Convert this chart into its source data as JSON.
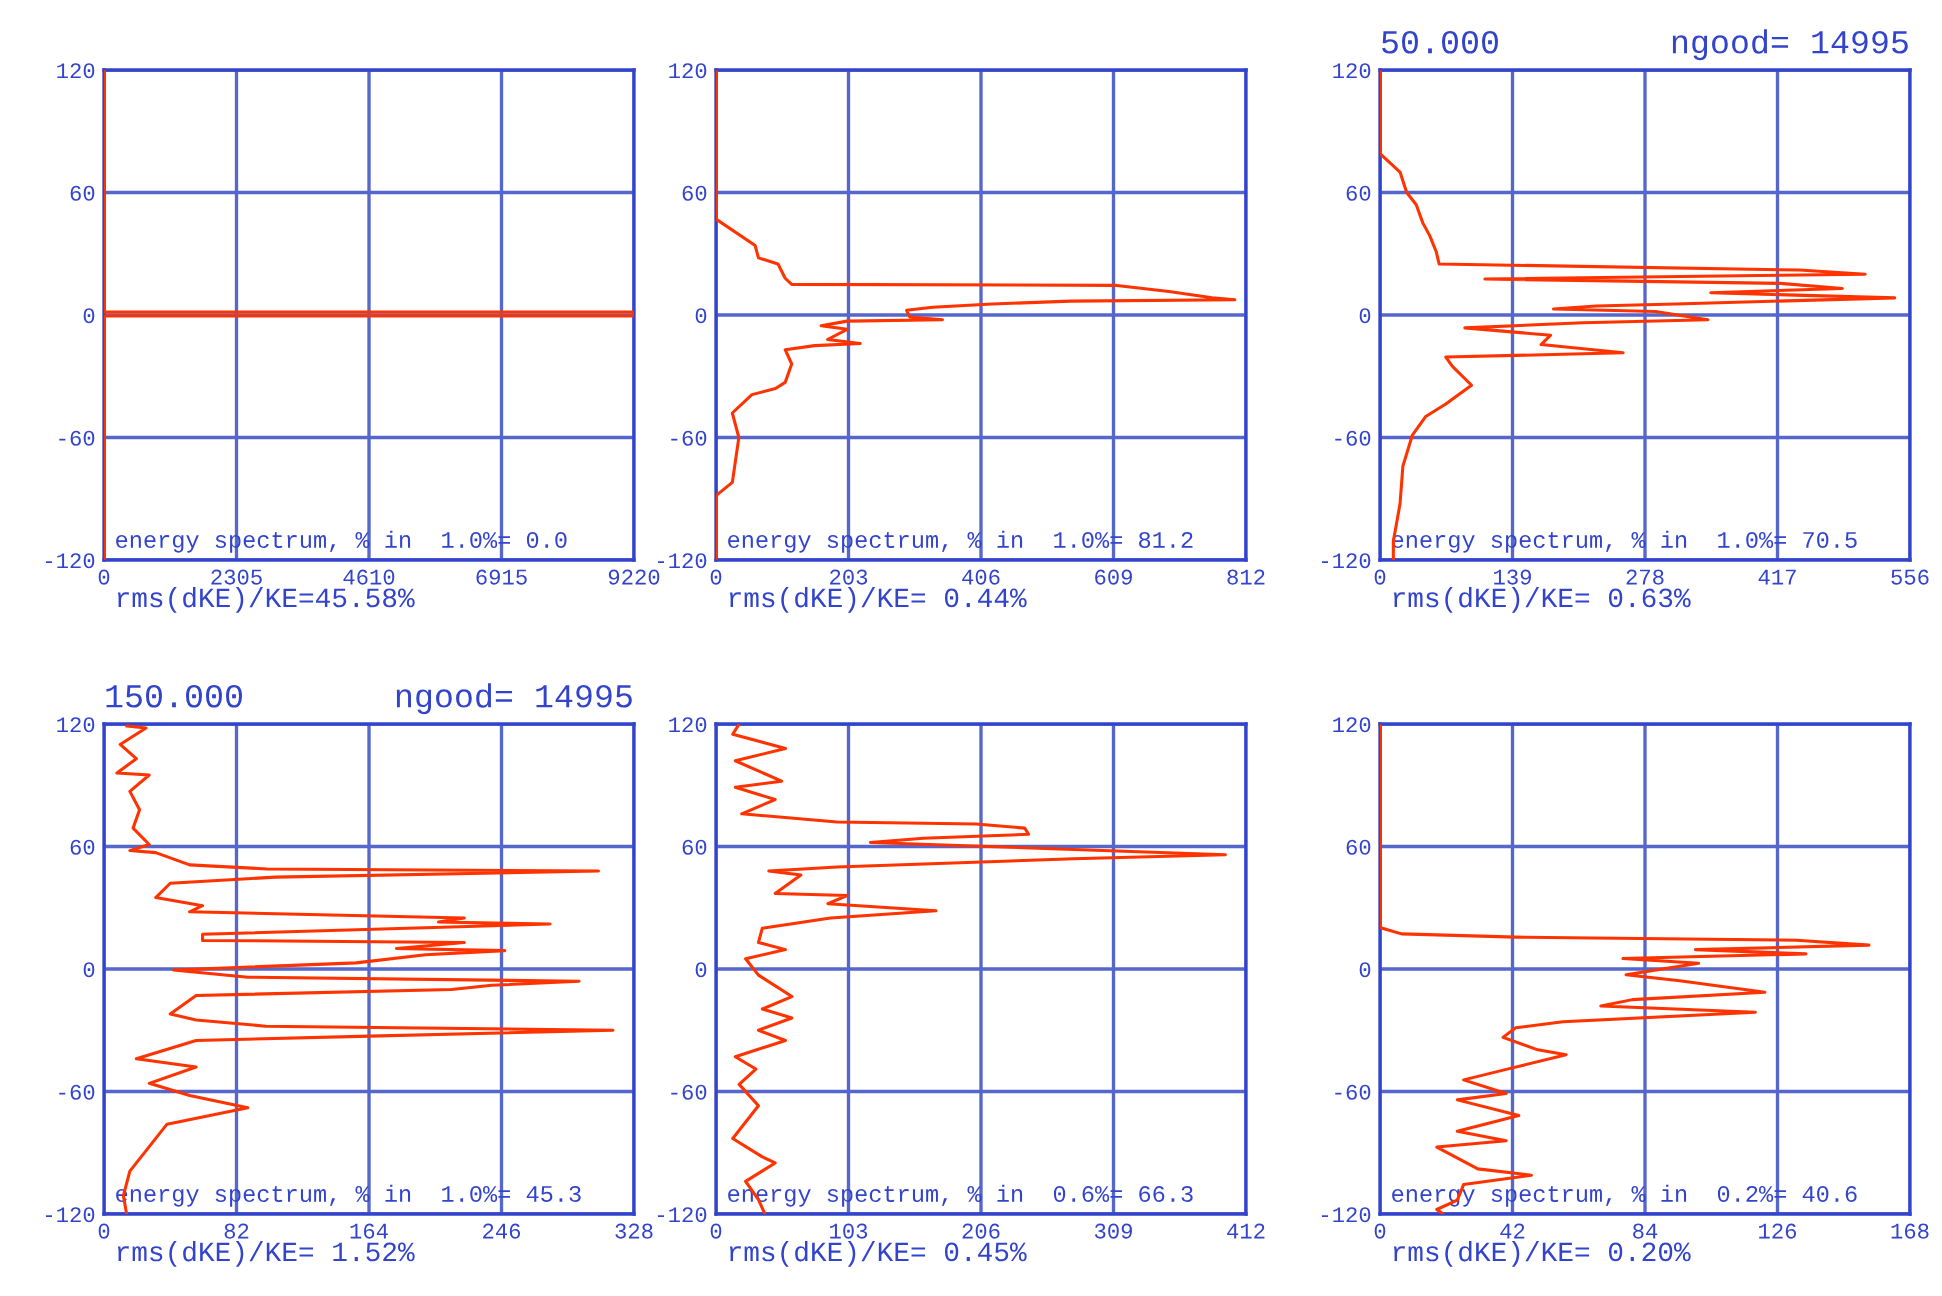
{
  "chart_data": [
    {
      "type": "line",
      "xlim": [
        0,
        9220
      ],
      "xticks": [
        0,
        2305,
        4610,
        6915,
        9220
      ],
      "ylim": [
        -120,
        120
      ],
      "yticks": [
        -120,
        -60,
        0,
        60,
        120
      ],
      "grid": true,
      "series": [
        {
          "color": "#ff3300",
          "x": [
            0,
            0,
            9220,
            9220,
            0,
            0
          ],
          "values": [
            120,
            1.5,
            1.5,
            -0.5,
            -0.5,
            -120
          ]
        }
      ],
      "annotations": [
        "energy spectrum, % in  1.0%= 0.0",
        "rms(dKE)/KE=45.58%"
      ]
    },
    {
      "type": "line",
      "xlim": [
        0,
        812
      ],
      "xticks": [
        0,
        203,
        406,
        609,
        812
      ],
      "ylim": [
        -120,
        120
      ],
      "yticks": [
        -120,
        -60,
        0,
        60,
        120
      ],
      "grid": true,
      "series": [
        {
          "color": "#ff3300",
          "x": [
            0,
            0,
            60,
            65,
            95,
            106,
            116,
            614,
            694,
            760,
            795,
            543,
            423,
            332,
            292,
            297,
            347,
            201,
            161,
            201,
            171,
            221,
            151,
            106,
            116,
            106,
            91,
            55,
            25,
            35,
            25,
            0,
            0
          ],
          "values": [
            120,
            47,
            34,
            28,
            25,
            18,
            15,
            14.5,
            11.5,
            8.4,
            7.5,
            6.8,
            5.4,
            3.8,
            2.3,
            -1,
            -2.3,
            -3,
            -5.3,
            -7,
            -12,
            -14,
            -15,
            -17,
            -24,
            -33,
            -36,
            -39,
            -48,
            -60,
            -82,
            -88.5,
            -120
          ]
        }
      ],
      "annotations": [
        "energy spectrum, % in  1.0%= 81.2",
        "rms(dKE)/KE= 0.44%"
      ]
    },
    {
      "type": "line",
      "title": "50.000",
      "subtitle": "ngood= 14995",
      "xlim": [
        0,
        556
      ],
      "xticks": [
        0,
        139,
        278,
        417,
        556
      ],
      "ylim": [
        -120,
        120
      ],
      "yticks": [
        -120,
        -60,
        0,
        60,
        120
      ],
      "grid": true,
      "series": [
        {
          "color": "#ff3300",
          "x": [
            0,
            0,
            21,
            28,
            38,
            45,
            52,
            59,
            62,
            440,
            509,
            110,
            420,
            485,
            347,
            540,
            310,
            227,
            182,
            289,
            344,
            213,
            89,
            179,
            169,
            255,
            69,
            76,
            96,
            69,
            48,
            34,
            24,
            21,
            14,
            14
          ],
          "values": [
            120,
            79,
            70,
            60,
            54,
            45,
            39,
            31,
            25,
            22,
            20,
            17.6,
            15.5,
            13,
            10.9,
            8.4,
            5.4,
            4.4,
            2.9,
            1.7,
            -2.3,
            -3.8,
            -6.3,
            -9.9,
            -14.5,
            -18.5,
            -20.6,
            -25.2,
            -34.4,
            -43.6,
            -49.7,
            -58.8,
            -74,
            -92.5,
            -110.8,
            -120
          ]
        }
      ],
      "annotations": [
        "energy spectrum, % in  1.0%= 70.5",
        "rms(dKE)/KE= 0.63%"
      ]
    },
    {
      "type": "line",
      "title": "150.000",
      "subtitle": "ngood= 14995",
      "xlim": [
        0,
        328
      ],
      "xticks": [
        0,
        82,
        164,
        246,
        328
      ],
      "ylim": [
        -120,
        120
      ],
      "yticks": [
        -120,
        -60,
        0,
        60,
        120
      ],
      "grid": true,
      "series": [
        {
          "color": "#ff3300",
          "x": [
            14,
            26,
            10,
            20,
            8,
            28,
            16,
            22,
            18,
            28,
            16,
            32,
            53,
            101,
            306,
            106,
            41,
            32,
            61,
            53,
            223,
            207,
            276,
            61,
            61,
            223,
            181,
            248,
            199,
            156,
            43,
            89,
            294,
            240,
            215,
            57,
            41,
            57,
            100,
            315,
            158,
            57,
            20,
            57,
            28,
            53,
            89,
            39,
            28,
            16,
            12,
            14
          ],
          "values": [
            119,
            118,
            110,
            103,
            96,
            95,
            87,
            78,
            69,
            61,
            58,
            57,
            51,
            49,
            48,
            45,
            42,
            35,
            31,
            28,
            25,
            23,
            22,
            17,
            14,
            13,
            10,
            9,
            7,
            3,
            -0.5,
            -4,
            -6,
            -8,
            -10,
            -13,
            -22,
            -25,
            -28,
            -30,
            -33,
            -35,
            -44,
            -48,
            -56,
            -62,
            -68,
            -76,
            -87,
            -99,
            -111,
            -120
          ]
        }
      ],
      "annotations": [
        "energy spectrum, % in  1.0%= 45.3",
        "rms(dKE)/KE= 1.52%"
      ]
    },
    {
      "type": "line",
      "xlim": [
        0,
        412
      ],
      "xticks": [
        0,
        103,
        206,
        309,
        412
      ],
      "ylim": [
        -120,
        120
      ],
      "yticks": [
        -120,
        -60,
        0,
        60,
        120
      ],
      "grid": true,
      "series": [
        {
          "color": "#ff3300",
          "x": [
            18,
            13,
            54,
            15,
            51,
            15,
            46,
            20,
            94,
            202,
            240,
            243,
            161,
            120,
            396,
            278,
            94,
            41,
            66,
            46,
            102,
            87,
            171,
            89,
            36,
            33,
            54,
            23,
            33,
            59,
            36,
            59,
            33,
            54,
            15,
            31,
            18,
            33,
            13,
            36,
            46,
            23,
            33,
            38
          ],
          "values": [
            120,
            115,
            108,
            102,
            92,
            89,
            83,
            76,
            72,
            71,
            69,
            66,
            64,
            62,
            56,
            54,
            50,
            48,
            46,
            37,
            36,
            32,
            28.5,
            25,
            20,
            13,
            9.5,
            5,
            -3,
            -13.5,
            -19.6,
            -24,
            -30,
            -35,
            -43,
            -49,
            -56.5,
            -67,
            -83,
            -92,
            -95,
            -104,
            -113,
            -120
          ]
        }
      ],
      "annotations": [
        "energy spectrum, % in  0.6%= 66.3",
        "rms(dKE)/KE= 0.45%"
      ]
    },
    {
      "type": "line",
      "xlim": [
        0,
        168
      ],
      "xticks": [
        0,
        42,
        84,
        126,
        168
      ],
      "ylim": [
        -120,
        120
      ],
      "yticks": [
        -120,
        -60,
        0,
        60,
        120
      ],
      "grid": true,
      "series": [
        {
          "color": "#ff3300",
          "x": [
            0,
            0,
            6.8,
            43,
            132,
            155,
            100,
            135,
            77,
            101,
            78,
            95,
            122,
            80,
            70,
            119,
            58,
            43,
            39,
            50,
            59,
            41,
            26.5,
            40,
            24.5,
            44,
            24.5,
            40,
            18,
            31,
            48,
            26.5,
            24.5,
            18,
            20
          ],
          "values": [
            120,
            20.3,
            17.2,
            15.6,
            14.1,
            11.7,
            9.5,
            7.4,
            5.1,
            2.8,
            -2.8,
            -5.8,
            -11.4,
            -15,
            -18.1,
            -21.2,
            -25.8,
            -28.8,
            -33.5,
            -39.6,
            -42,
            -48.8,
            -54.3,
            -61,
            -64.1,
            -71.8,
            -79.5,
            -84.1,
            -87.2,
            -97.9,
            -101,
            -105.6,
            -113.2,
            -117.8,
            -120
          ]
        }
      ],
      "annotations": [
        "energy spectrum, % in  0.2%= 40.6",
        "rms(dKE)/KE= 0.20%"
      ]
    }
  ]
}
